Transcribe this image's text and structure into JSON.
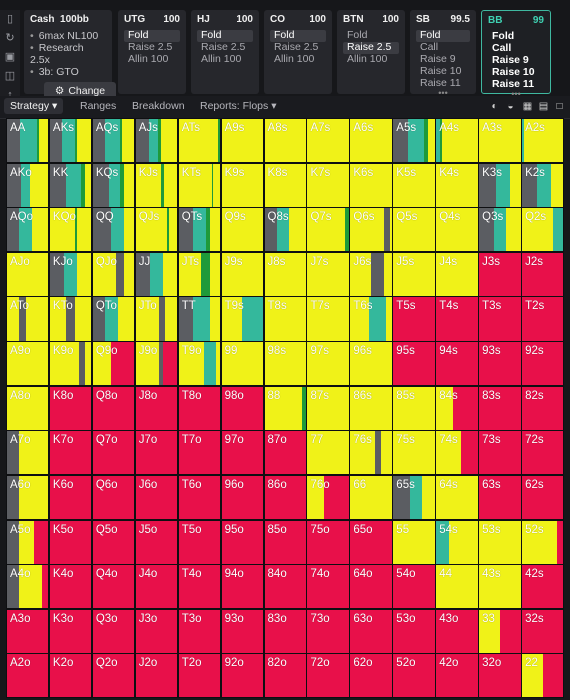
{
  "colors": {
    "yellow": "#f0f218",
    "red": "#e8104a",
    "teal": "#34b89c",
    "green": "#1f9a3a",
    "gray": "#5b5d62",
    "accent": "#3fd2b3"
  },
  "rail_icons": [
    "bookmark-icon",
    "refresh-icon",
    "save-icon",
    "gamepad-icon",
    "compress-icon"
  ],
  "cash_panel": {
    "title": "Cash",
    "stack": "100bb",
    "lines": [
      "6max NL100",
      "Research 2.5x",
      "3b: GTO"
    ],
    "change_label": "Change"
  },
  "positions": [
    {
      "name": "UTG",
      "stack": "100",
      "options": [
        "Fold",
        "Raise 2.5",
        "Allin 100"
      ],
      "selected": 0
    },
    {
      "name": "HJ",
      "stack": "100",
      "options": [
        "Fold",
        "Raise 2.5",
        "Allin 100"
      ],
      "selected": 0
    },
    {
      "name": "CO",
      "stack": "100",
      "options": [
        "Fold",
        "Raise 2.5",
        "Allin 100"
      ],
      "selected": 0
    },
    {
      "name": "BTN",
      "stack": "100",
      "options": [
        "Fold",
        "Raise 2.5",
        "Allin 100"
      ],
      "selected": 1
    },
    {
      "name": "SB",
      "stack": "99.5",
      "options": [
        "Fold",
        "Call",
        "Raise 9",
        "Raise 10",
        "Raise 11"
      ],
      "selected": 0
    },
    {
      "name": "BB",
      "stack": "99",
      "options": [
        "Fold",
        "Call",
        "Raise 9",
        "Raise 10",
        "Raise 11"
      ],
      "selected": -1,
      "active": true
    }
  ],
  "tabs": [
    {
      "label": "Strategy",
      "selected": true,
      "dropdown": true
    },
    {
      "label": "Ranges",
      "selected": false,
      "dropdown": false
    },
    {
      "label": "Breakdown",
      "selected": false,
      "dropdown": false
    },
    {
      "label": "Reports: Flops",
      "selected": false,
      "dropdown": true
    }
  ],
  "toolbar_icons": [
    "pie-icon",
    "contrast-icon",
    "grid-small-icon",
    "grid-list-icon",
    "grid-large-icon"
  ],
  "hand_matrix": {
    "rows": [
      [
        "AA",
        "AKs",
        "AQs",
        "AJs",
        "ATs",
        "A9s",
        "A8s",
        "A7s",
        "A6s",
        "A5s",
        "A4s",
        "A3s",
        "A2s"
      ],
      [
        "AKo",
        "KK",
        "KQs",
        "KJs",
        "KTs",
        "K9s",
        "K8s",
        "K7s",
        "K6s",
        "K5s",
        "K4s",
        "K3s",
        "K2s"
      ],
      [
        "AQo",
        "KQo",
        "QQ",
        "QJs",
        "QTs",
        "Q9s",
        "Q8s",
        "Q7s",
        "Q6s",
        "Q5s",
        "Q4s",
        "Q3s",
        "Q2s"
      ],
      [
        "AJo",
        "KJo",
        "QJo",
        "JJ",
        "JTs",
        "J9s",
        "J8s",
        "J7s",
        "J6s",
        "J5s",
        "J4s",
        "J3s",
        "J2s"
      ],
      [
        "ATo",
        "KTo",
        "QTo",
        "JTo",
        "TT",
        "T9s",
        "T8s",
        "T7s",
        "T6s",
        "T5s",
        "T4s",
        "T3s",
        "T2s"
      ],
      [
        "A9o",
        "K9o",
        "Q9o",
        "J9o",
        "T9o",
        "99",
        "98s",
        "97s",
        "96s",
        "95s",
        "94s",
        "93s",
        "92s"
      ],
      [
        "A8o",
        "K8o",
        "Q8o",
        "J8o",
        "T8o",
        "98o",
        "88",
        "87s",
        "86s",
        "85s",
        "84s",
        "83s",
        "82s"
      ],
      [
        "A7o",
        "K7o",
        "Q7o",
        "J7o",
        "T7o",
        "97o",
        "87o",
        "77",
        "76s",
        "75s",
        "74s",
        "73s",
        "72s"
      ],
      [
        "A6o",
        "K6o",
        "Q6o",
        "J6o",
        "T6o",
        "96o",
        "86o",
        "76o",
        "66",
        "65s",
        "64s",
        "63s",
        "62s"
      ],
      [
        "A5o",
        "K5o",
        "Q5o",
        "J5o",
        "T5o",
        "95o",
        "85o",
        "75o",
        "65o",
        "55",
        "54s",
        "53s",
        "52s"
      ],
      [
        "A4o",
        "K4o",
        "Q4o",
        "J4o",
        "T4o",
        "94o",
        "84o",
        "74o",
        "64o",
        "54o",
        "44",
        "43s",
        "42s"
      ],
      [
        "A3o",
        "K3o",
        "Q3o",
        "J3o",
        "T3o",
        "93o",
        "83o",
        "73o",
        "63o",
        "53o",
        "43o",
        "33",
        "32s"
      ],
      [
        "A2o",
        "K2o",
        "Q2o",
        "J2o",
        "T2o",
        "92o",
        "82o",
        "72o",
        "62o",
        "52o",
        "42o",
        "32o",
        "22"
      ]
    ],
    "strategies": [
      [
        [
          "g",
          0.32,
          "t",
          0.4,
          "G",
          0.06,
          "y",
          0.22
        ],
        [
          "g",
          0.28,
          "t",
          0.32,
          "G",
          0.05,
          "y",
          0.35
        ],
        [
          "g",
          0.3,
          "t",
          0.35,
          "G",
          0.05,
          "y",
          0.3
        ],
        [
          "g",
          0.32,
          "t",
          0.22,
          "G",
          0.06,
          "y",
          0.4
        ],
        [
          "y",
          0.96,
          "G",
          0.04
        ],
        [
          "y",
          1
        ],
        [
          "y",
          1
        ],
        [
          "y",
          1
        ],
        [
          "y",
          1
        ],
        [
          "g",
          0.35,
          "t",
          0.38,
          "G",
          0.1,
          "y",
          0.17
        ],
        [
          "t",
          0.1,
          "G",
          0.05,
          "y",
          0.85
        ],
        [
          "y",
          1
        ],
        [
          "t",
          0.05,
          "y",
          0.95
        ]
      ],
      [
        [
          "g",
          0.35,
          "t",
          0.2,
          "y",
          0.45
        ],
        [
          "g",
          0.4,
          "t",
          0.35,
          "G",
          0.1,
          "y",
          0.15
        ],
        [
          "g",
          0.4,
          "t",
          0.25,
          "G",
          0.1,
          "y",
          0.25
        ],
        [
          "y",
          0.6,
          "G",
          0.08,
          "y",
          0.32
        ],
        [
          "y",
          0.8,
          "G",
          0.04,
          "y",
          0.16
        ],
        [
          "y",
          1
        ],
        [
          "y",
          1
        ],
        [
          "y",
          1
        ],
        [
          "y",
          1
        ],
        [
          "y",
          1
        ],
        [
          "y",
          1
        ],
        [
          "g",
          0.4,
          "t",
          0.35,
          "y",
          0.25
        ],
        [
          "g",
          0.35,
          "t",
          0.35,
          "y",
          0.3
        ]
      ],
      [
        [
          "g",
          0.3,
          "t",
          0.3,
          "y",
          0.4
        ],
        [
          "y",
          0.6,
          "G",
          0.06,
          "y",
          0.34
        ],
        [
          "g",
          0.45,
          "t",
          0.3,
          "y",
          0.25
        ],
        [
          "y",
          0.75,
          "G",
          0.06,
          "y",
          0.19
        ],
        [
          "g",
          0.35,
          "t",
          0.3,
          "G",
          0.1,
          "y",
          0.25
        ],
        [
          "y",
          1
        ],
        [
          "g",
          0.3,
          "t",
          0.3,
          "y",
          0.4
        ],
        [
          "y",
          0.9,
          "G",
          0.1
        ],
        [
          "y",
          0.8,
          "g",
          0.15,
          "y",
          0.05
        ],
        [
          "y",
          1
        ],
        [
          "y",
          1
        ],
        [
          "g",
          0.35,
          "t",
          0.3,
          "y",
          0.35
        ],
        [
          "y",
          0.75,
          "t",
          0.25
        ]
      ],
      [
        [
          "y",
          1
        ],
        [
          "g",
          0.35,
          "t",
          0.3,
          "y",
          0.35
        ],
        [
          "y",
          0.55,
          "g",
          0.2,
          "y",
          0.25
        ],
        [
          "g",
          0.35,
          "t",
          0.3,
          "y",
          0.35
        ],
        [
          "y",
          0.55,
          "G",
          0.2,
          "y",
          0.25
        ],
        [
          "y",
          1
        ],
        [
          "y",
          1
        ],
        [
          "y",
          1
        ],
        [
          "y",
          0.5,
          "g",
          0.3,
          "y",
          0.2
        ],
        [
          "y",
          1
        ],
        [
          "y",
          1,
          "r",
          0
        ],
        [
          "r",
          1
        ],
        [
          "r",
          1
        ]
      ],
      [
        [
          "y",
          0.3,
          "g",
          0.15,
          "y",
          0.55
        ],
        [
          "y",
          0.4,
          "g",
          0.2,
          "y",
          0.4
        ],
        [
          "g",
          0.3,
          "t",
          0.3,
          "y",
          0.4
        ],
        [
          "y",
          0.55,
          "g",
          0.15,
          "y",
          0.3
        ],
        [
          "g",
          0.35,
          "t",
          0.4,
          "y",
          0.25
        ],
        [
          "y",
          0.5,
          "t",
          0.5
        ],
        [
          "y",
          1
        ],
        [
          "y",
          1
        ],
        [
          "y",
          0.45,
          "t",
          0.4,
          "y",
          0.15
        ],
        [
          "r",
          1
        ],
        [
          "r",
          1
        ],
        [
          "r",
          1
        ],
        [
          "r",
          1
        ]
      ],
      [
        [
          "y",
          1
        ],
        [
          "y",
          0.7,
          "g",
          0.15,
          "y",
          0.15
        ],
        [
          "y",
          0.45,
          "r",
          0.55
        ],
        [
          "y",
          0.55,
          "g",
          0.1,
          "r",
          0.35
        ],
        [
          "y",
          0.6,
          "t",
          0.3,
          "y",
          0.1
        ],
        [
          "y",
          1
        ],
        [
          "y",
          1
        ],
        [
          "y",
          1
        ],
        [
          "y",
          1
        ],
        [
          "r",
          1
        ],
        [
          "r",
          1
        ],
        [
          "r",
          1
        ],
        [
          "r",
          1
        ]
      ],
      [
        [
          "y",
          1
        ],
        [
          "r",
          1
        ],
        [
          "r",
          1
        ],
        [
          "r",
          1
        ],
        [
          "r",
          1
        ],
        [
          "r",
          1
        ],
        [
          "y",
          0.9,
          "G",
          0.1
        ],
        [
          "y",
          1
        ],
        [
          "y",
          1
        ],
        [
          "y",
          1
        ],
        [
          "y",
          0.4,
          "r",
          0.6
        ],
        [
          "r",
          1
        ],
        [
          "r",
          1
        ]
      ],
      [
        [
          "g",
          0.3,
          "y",
          0.7
        ],
        [
          "r",
          1
        ],
        [
          "r",
          1
        ],
        [
          "r",
          1
        ],
        [
          "r",
          1
        ],
        [
          "r",
          1
        ],
        [
          "r",
          1
        ],
        [
          "y",
          1
        ],
        [
          "y",
          0.6,
          "g",
          0.15,
          "y",
          0.25
        ],
        [
          "y",
          1
        ],
        [
          "y",
          0.6,
          "r",
          0.4
        ],
        [
          "r",
          1
        ],
        [
          "r",
          1
        ]
      ],
      [
        [
          "g",
          0.3,
          "y",
          0.7
        ],
        [
          "r",
          1
        ],
        [
          "r",
          1
        ],
        [
          "r",
          1
        ],
        [
          "r",
          1
        ],
        [
          "r",
          1
        ],
        [
          "r",
          1
        ],
        [
          "y",
          0.4,
          "r",
          0.6
        ],
        [
          "y",
          1
        ],
        [
          "g",
          0.4,
          "t",
          0.3,
          "y",
          0.3
        ],
        [
          "y",
          1
        ],
        [
          "r",
          1
        ],
        [
          "r",
          1
        ]
      ],
      [
        [
          "g",
          0.3,
          "y",
          0.35,
          "r",
          0.35
        ],
        [
          "r",
          1
        ],
        [
          "r",
          1
        ],
        [
          "r",
          1
        ],
        [
          "r",
          1
        ],
        [
          "r",
          1
        ],
        [
          "r",
          1
        ],
        [
          "r",
          1
        ],
        [
          "r",
          1
        ],
        [
          "y",
          1
        ],
        [
          "t",
          0.3,
          "y",
          0.7
        ],
        [
          "y",
          1
        ],
        [
          "y",
          0.85,
          "r",
          0.15
        ]
      ],
      [
        [
          "g",
          0.3,
          "y",
          0.55,
          "r",
          0.15
        ],
        [
          "r",
          1
        ],
        [
          "r",
          1
        ],
        [
          "r",
          1
        ],
        [
          "r",
          1
        ],
        [
          "r",
          1
        ],
        [
          "r",
          1
        ],
        [
          "r",
          1
        ],
        [
          "r",
          1
        ],
        [
          "r",
          1
        ],
        [
          "y",
          1
        ],
        [
          "y",
          1
        ],
        [
          "r",
          1
        ]
      ],
      [
        [
          "r",
          1
        ],
        [
          "r",
          1
        ],
        [
          "r",
          1
        ],
        [
          "r",
          1
        ],
        [
          "r",
          1
        ],
        [
          "r",
          1
        ],
        [
          "r",
          1
        ],
        [
          "r",
          1
        ],
        [
          "r",
          1
        ],
        [
          "r",
          1
        ],
        [
          "r",
          1
        ],
        [
          "y",
          0.5,
          "r",
          0.5
        ],
        [
          "r",
          1
        ]
      ],
      [
        [
          "r",
          1
        ],
        [
          "r",
          1
        ],
        [
          "r",
          1
        ],
        [
          "r",
          1
        ],
        [
          "r",
          1
        ],
        [
          "r",
          1
        ],
        [
          "r",
          1
        ],
        [
          "r",
          1
        ],
        [
          "r",
          1
        ],
        [
          "r",
          1
        ],
        [
          "r",
          1
        ],
        [
          "r",
          1
        ],
        [
          "y",
          0.5,
          "r",
          0.5
        ]
      ]
    ]
  }
}
